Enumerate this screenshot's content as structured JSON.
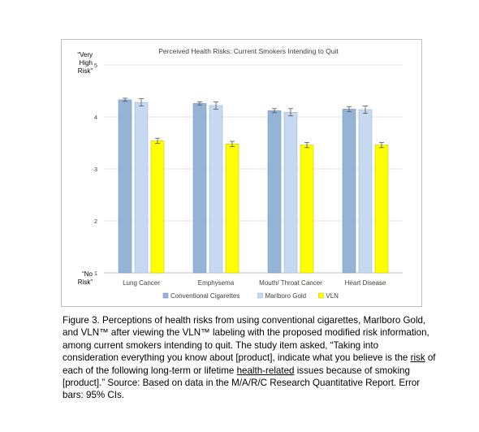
{
  "chart_data": {
    "type": "bar",
    "title": "Perceived Health Risks: Current Smokers Intending to Quit",
    "categories": [
      "Lung Cancer",
      "Emphysema",
      "Mouth/ Throat Cancer",
      "Heart Disease"
    ],
    "series": [
      {
        "name": "Conventional Cigarettes",
        "color": "#95b3d7",
        "values": [
          4.33,
          4.26,
          4.12,
          4.15
        ],
        "errors": [
          0.03,
          0.03,
          0.04,
          0.05
        ]
      },
      {
        "name": "Marlboro Gold",
        "color": "#c6d9f1",
        "values": [
          4.28,
          4.22,
          4.09,
          4.14
        ],
        "errors": [
          0.07,
          0.07,
          0.07,
          0.07
        ]
      },
      {
        "name": "VLN",
        "color": "#ffff00",
        "values": [
          3.54,
          3.48,
          3.46,
          3.46
        ],
        "errors": [
          0.05,
          0.05,
          0.05,
          0.05
        ]
      }
    ],
    "ylim": [
      1,
      5
    ],
    "yticks": [
      "1",
      "2",
      "3",
      "4",
      "5"
    ],
    "y_top_label": [
      "“Very",
      "High",
      "Risk”"
    ],
    "y_bottom_label": [
      "“No",
      "Risk”"
    ],
    "grid": true,
    "legend_position": "bottom"
  },
  "caption": {
    "parts": [
      {
        "text": "Figure 3. Perceptions of health risks from using conventional cigarettes, Marlboro Gold, and VLN™ after viewing the VLN™ labeling with the proposed modified risk information, among current smokers intending to quit. The study item asked, “Taking into consideration everything you know about [product], indicate what you believe is the ",
        "underline": false
      },
      {
        "text": "risk",
        "underline": true
      },
      {
        "text": " of each of the following long-term or lifetime ",
        "underline": false
      },
      {
        "text": "health-related",
        "underline": true
      },
      {
        "text": " issues because of smoking [product].” Source: Based on data in the M/A/R/C Research Quantitative Report. Error bars: 95% CIs.",
        "underline": false
      }
    ]
  }
}
